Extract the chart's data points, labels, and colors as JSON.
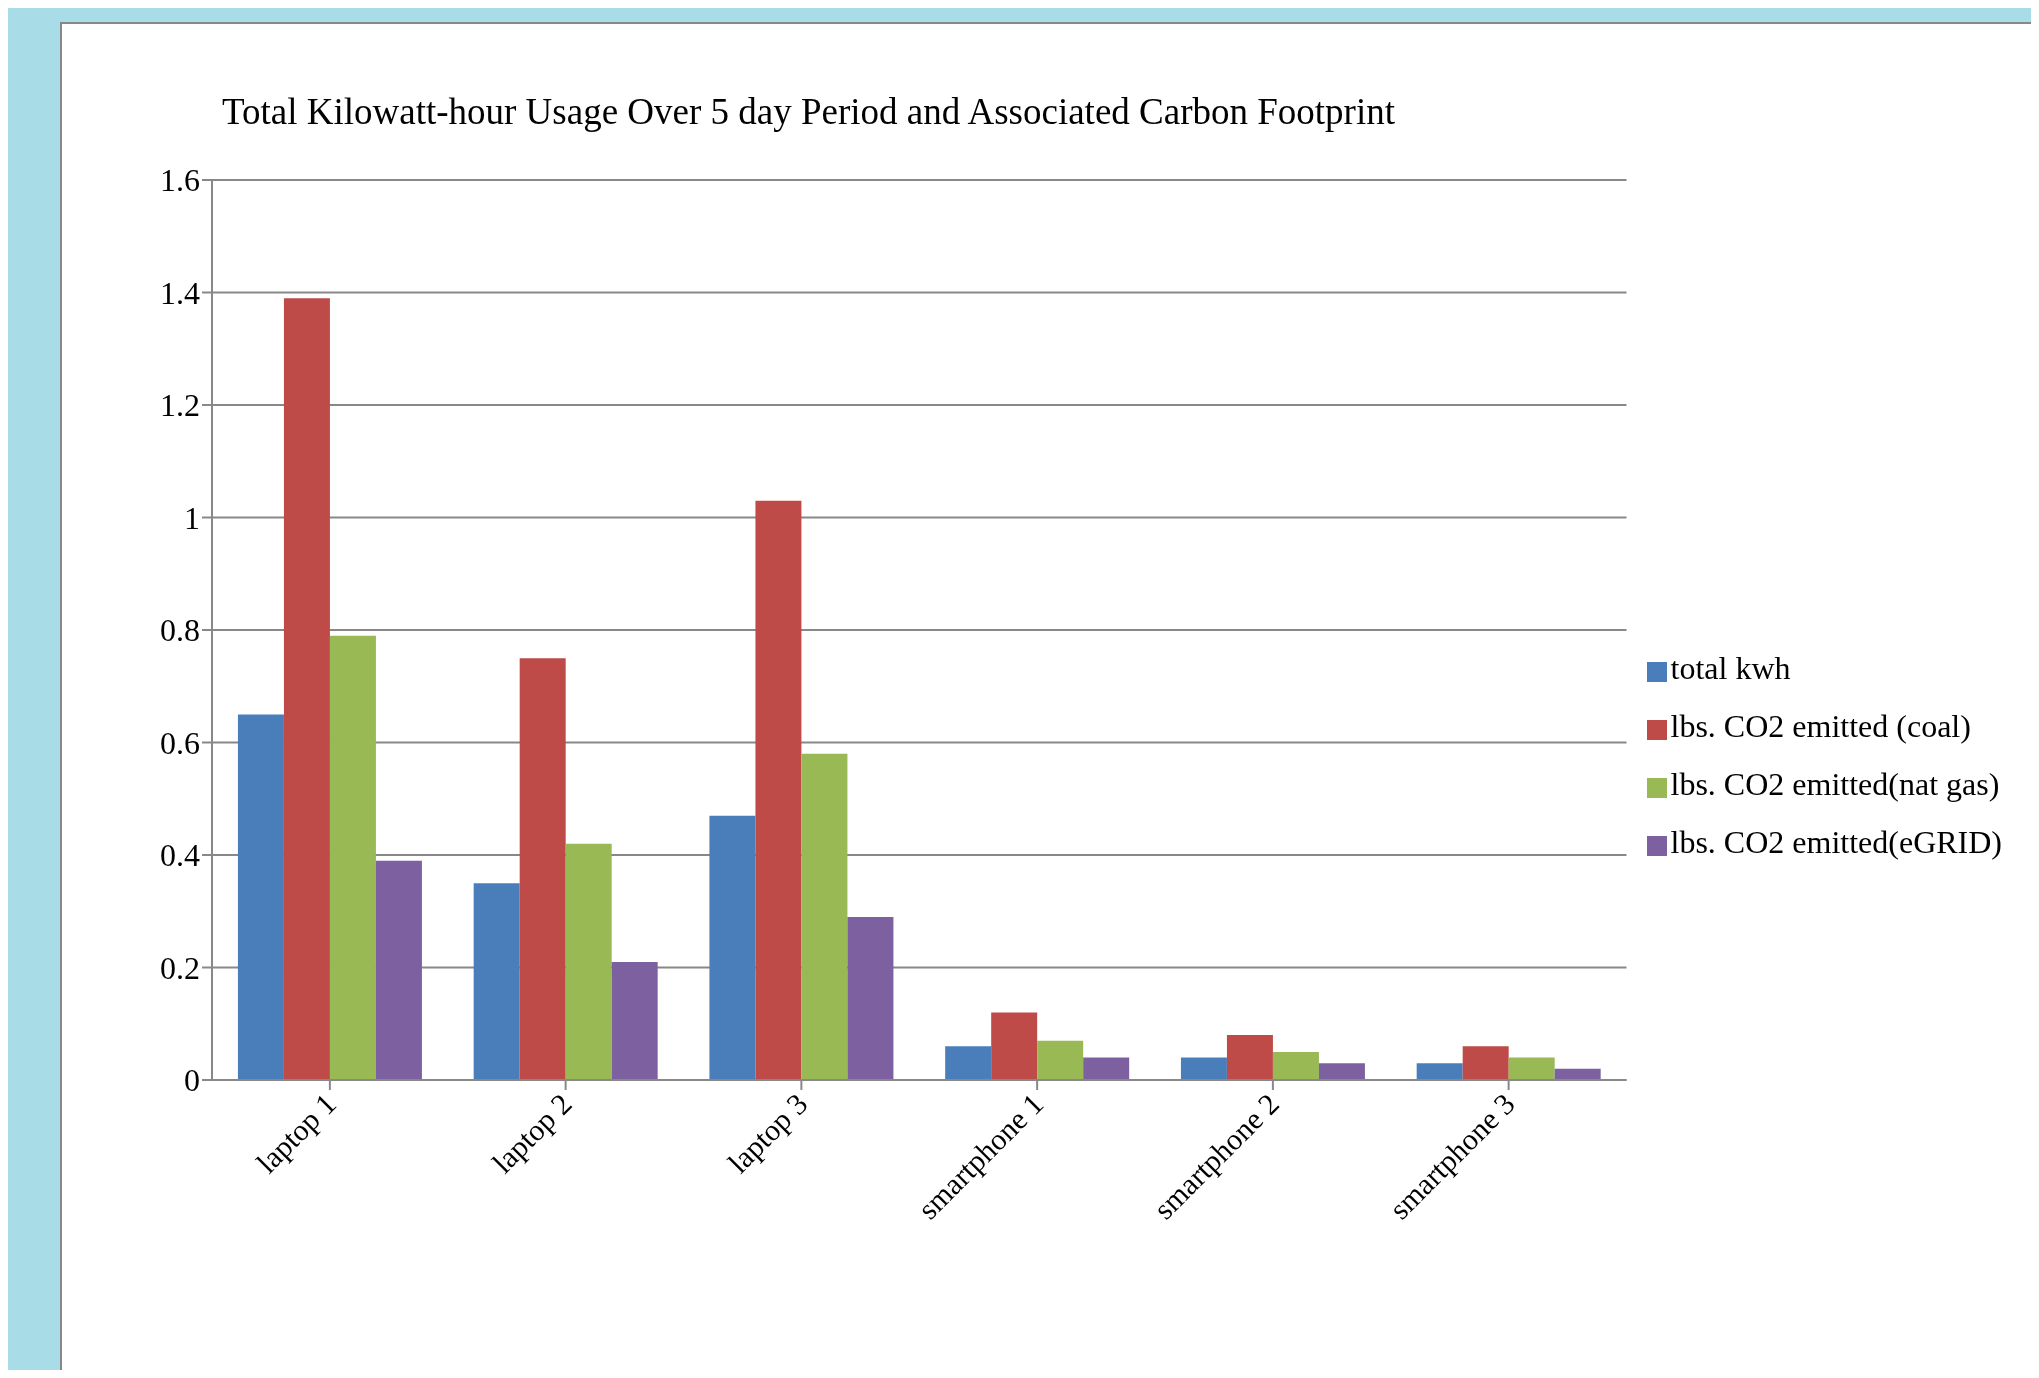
{
  "chart_data": {
    "type": "bar",
    "title": "Total Kilowatt-hour Usage Over 5 day Period and Associated Carbon Footprint",
    "categories": [
      "laptop 1",
      "laptop 2",
      "laptop 3",
      "smartphone 1",
      "smartphone 2",
      "smartphone 3"
    ],
    "series": [
      {
        "name": "total kwh",
        "color": "#4a7ebb",
        "values": [
          0.65,
          0.35,
          0.47,
          0.06,
          0.04,
          0.03
        ]
      },
      {
        "name": "lbs. CO2 emitted (coal)",
        "color": "#be4b48",
        "values": [
          1.39,
          0.75,
          1.03,
          0.12,
          0.08,
          0.06
        ]
      },
      {
        "name": "lbs. CO2 emitted(nat gas)",
        "color": "#98b954",
        "values": [
          0.79,
          0.42,
          0.58,
          0.07,
          0.05,
          0.04
        ]
      },
      {
        "name": "lbs. CO2 emitted(eGRID)",
        "color": "#7d60a0",
        "values": [
          0.39,
          0.21,
          0.29,
          0.04,
          0.03,
          0.02
        ]
      }
    ],
    "ylim": [
      0,
      1.6
    ],
    "yticks": [
      0,
      0.2,
      0.4,
      0.6,
      0.8,
      1,
      1.2,
      1.4,
      1.6
    ],
    "grid": "y",
    "legend": "right"
  }
}
